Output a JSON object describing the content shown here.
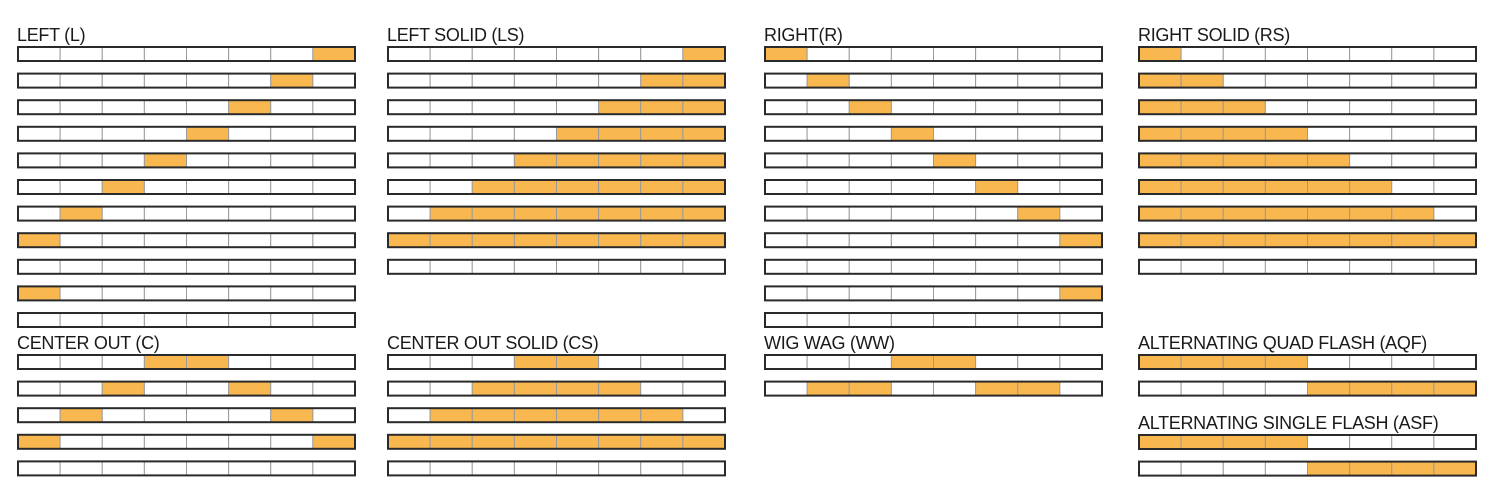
{
  "sections": [
    {
      "title": "LEFT (L)",
      "rows": [
        [
          0,
          0,
          0,
          0,
          0,
          0,
          0,
          1
        ],
        [
          0,
          0,
          0,
          0,
          0,
          0,
          1,
          0
        ],
        [
          0,
          0,
          0,
          0,
          0,
          1,
          0,
          0
        ],
        [
          0,
          0,
          0,
          0,
          1,
          0,
          0,
          0
        ],
        [
          0,
          0,
          0,
          1,
          0,
          0,
          0,
          0
        ],
        [
          0,
          0,
          1,
          0,
          0,
          0,
          0,
          0
        ],
        [
          0,
          1,
          0,
          0,
          0,
          0,
          0,
          0
        ],
        [
          1,
          0,
          0,
          0,
          0,
          0,
          0,
          0
        ],
        [
          0,
          0,
          0,
          0,
          0,
          0,
          0,
          0
        ],
        [
          1,
          0,
          0,
          0,
          0,
          0,
          0,
          0
        ],
        [
          0,
          0,
          0,
          0,
          0,
          0,
          0,
          0
        ]
      ]
    },
    {
      "title": "CENTER OUT (C)",
      "rows": [
        [
          0,
          0,
          0,
          1,
          1,
          0,
          0,
          0
        ],
        [
          0,
          0,
          1,
          0,
          0,
          1,
          0,
          0
        ],
        [
          0,
          1,
          0,
          0,
          0,
          0,
          1,
          0
        ],
        [
          1,
          0,
          0,
          0,
          0,
          0,
          0,
          1
        ],
        [
          0,
          0,
          0,
          0,
          0,
          0,
          0,
          0
        ]
      ]
    },
    {
      "title": "LEFT SOLID (LS)",
      "rows": [
        [
          0,
          0,
          0,
          0,
          0,
          0,
          0,
          1
        ],
        [
          0,
          0,
          0,
          0,
          0,
          0,
          1,
          1
        ],
        [
          0,
          0,
          0,
          0,
          0,
          1,
          1,
          1
        ],
        [
          0,
          0,
          0,
          0,
          1,
          1,
          1,
          1
        ],
        [
          0,
          0,
          0,
          1,
          1,
          1,
          1,
          1
        ],
        [
          0,
          0,
          1,
          1,
          1,
          1,
          1,
          1
        ],
        [
          0,
          1,
          1,
          1,
          1,
          1,
          1,
          1
        ],
        [
          1,
          1,
          1,
          1,
          1,
          1,
          1,
          1
        ],
        [
          0,
          0,
          0,
          0,
          0,
          0,
          0,
          0
        ]
      ]
    },
    {
      "title": "CENTER OUT SOLID (CS)",
      "rows": [
        [
          0,
          0,
          0,
          1,
          1,
          0,
          0,
          0
        ],
        [
          0,
          0,
          1,
          1,
          1,
          1,
          0,
          0
        ],
        [
          0,
          1,
          1,
          1,
          1,
          1,
          1,
          0
        ],
        [
          1,
          1,
          1,
          1,
          1,
          1,
          1,
          1
        ],
        [
          0,
          0,
          0,
          0,
          0,
          0,
          0,
          0
        ]
      ]
    },
    {
      "title": "RIGHT(R)",
      "rows": [
        [
          1,
          0,
          0,
          0,
          0,
          0,
          0,
          0
        ],
        [
          0,
          1,
          0,
          0,
          0,
          0,
          0,
          0
        ],
        [
          0,
          0,
          1,
          0,
          0,
          0,
          0,
          0
        ],
        [
          0,
          0,
          0,
          1,
          0,
          0,
          0,
          0
        ],
        [
          0,
          0,
          0,
          0,
          1,
          0,
          0,
          0
        ],
        [
          0,
          0,
          0,
          0,
          0,
          1,
          0,
          0
        ],
        [
          0,
          0,
          0,
          0,
          0,
          0,
          1,
          0
        ],
        [
          0,
          0,
          0,
          0,
          0,
          0,
          0,
          1
        ],
        [
          0,
          0,
          0,
          0,
          0,
          0,
          0,
          0
        ],
        [
          0,
          0,
          0,
          0,
          0,
          0,
          0,
          1
        ],
        [
          0,
          0,
          0,
          0,
          0,
          0,
          0,
          0
        ]
      ]
    },
    {
      "title": "WIG WAG (WW)",
      "rows": [
        [
          0,
          0,
          0,
          1,
          1,
          0,
          0,
          0
        ],
        [
          0,
          1,
          1,
          0,
          0,
          1,
          1,
          0
        ]
      ]
    },
    {
      "title": "RIGHT SOLID (RS)",
      "rows": [
        [
          1,
          0,
          0,
          0,
          0,
          0,
          0,
          0
        ],
        [
          1,
          1,
          0,
          0,
          0,
          0,
          0,
          0
        ],
        [
          1,
          1,
          1,
          0,
          0,
          0,
          0,
          0
        ],
        [
          1,
          1,
          1,
          1,
          0,
          0,
          0,
          0
        ],
        [
          1,
          1,
          1,
          1,
          1,
          0,
          0,
          0
        ],
        [
          1,
          1,
          1,
          1,
          1,
          1,
          0,
          0
        ],
        [
          1,
          1,
          1,
          1,
          1,
          1,
          1,
          0
        ],
        [
          1,
          1,
          1,
          1,
          1,
          1,
          1,
          1
        ],
        [
          0,
          0,
          0,
          0,
          0,
          0,
          0,
          0
        ]
      ]
    },
    {
      "title": "ALTERNATING QUAD FLASH (AQF)",
      "rows": [
        [
          1,
          1,
          1,
          1,
          0,
          0,
          0,
          0
        ],
        [
          0,
          0,
          0,
          0,
          1,
          1,
          1,
          1
        ]
      ]
    },
    {
      "title": "ALTERNATING SINGLE FLASH (ASF)",
      "rows": [
        [
          1,
          1,
          1,
          1,
          0,
          0,
          0,
          0
        ],
        [
          0,
          0,
          0,
          0,
          1,
          1,
          1,
          1
        ]
      ]
    }
  ]
}
